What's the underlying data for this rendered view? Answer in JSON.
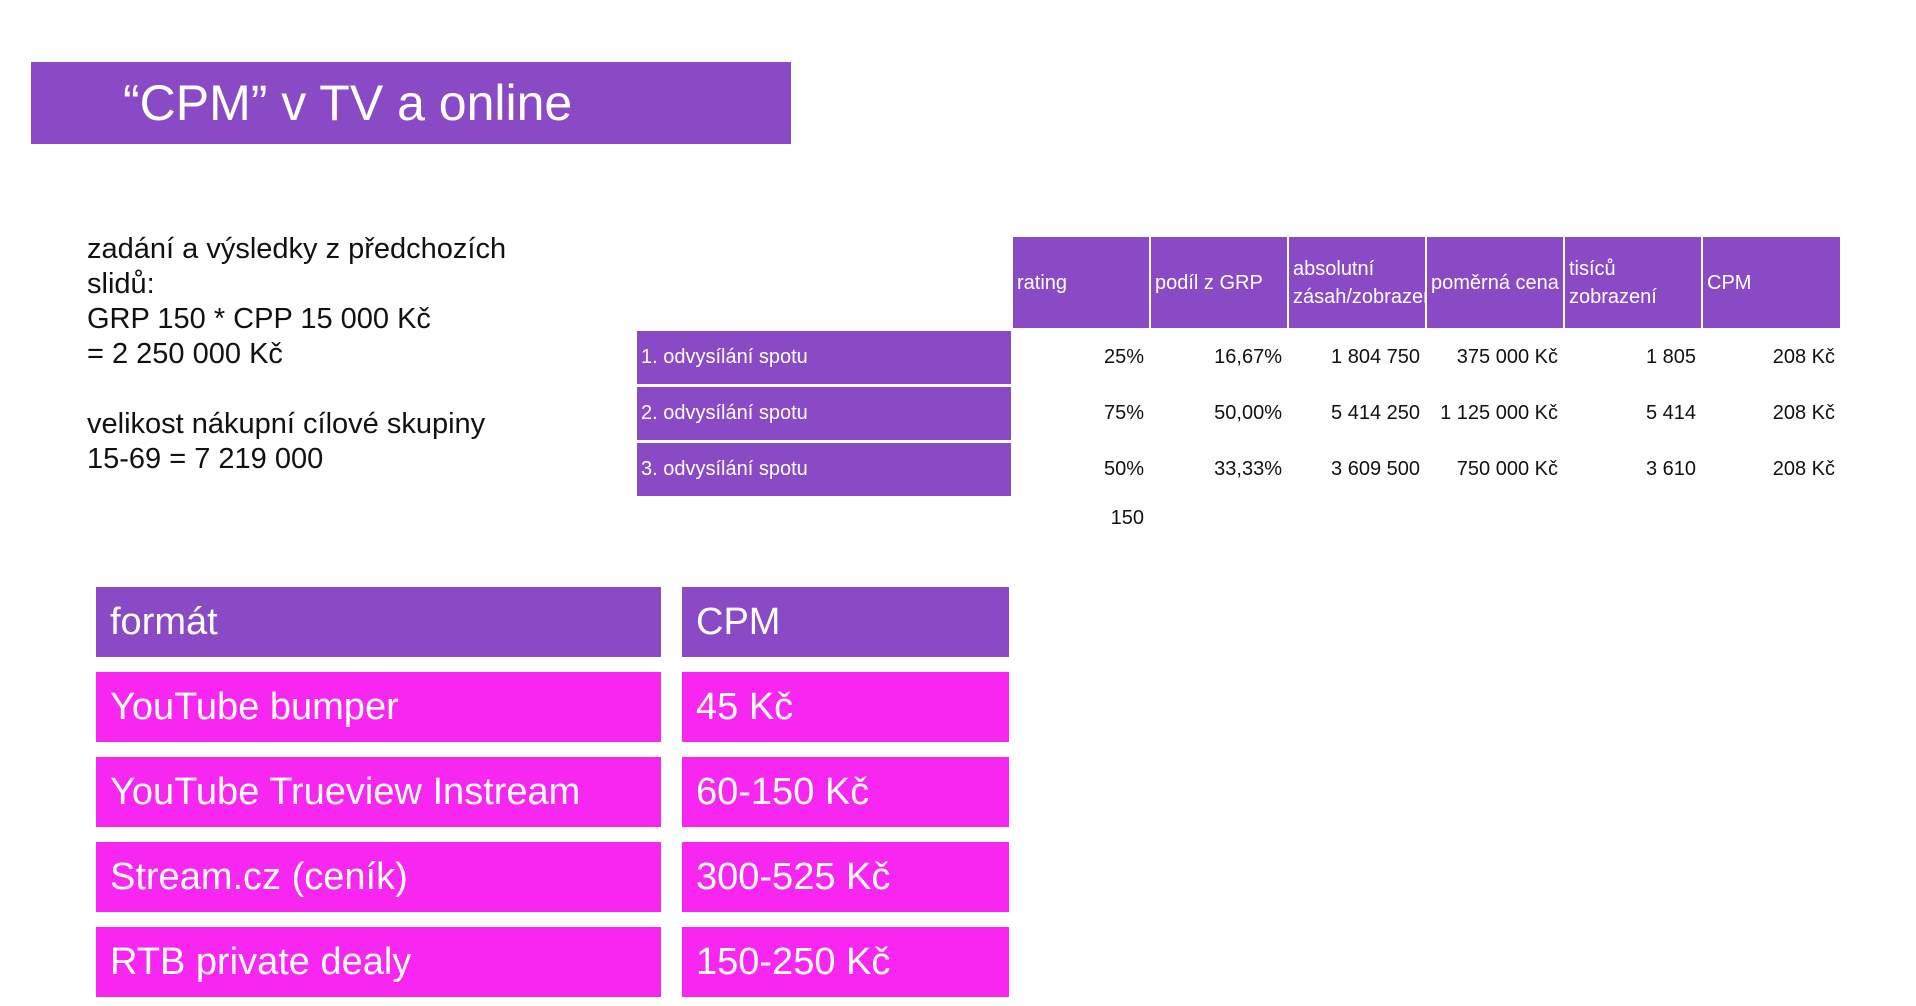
{
  "title": "“CPM” v TV a online",
  "intro": {
    "lines": [
      "zadání a výsledky z předchozích",
      "slidů:",
      "GRP 150 * CPP 15 000 Kč",
      "= 2 250 000 Kč"
    ],
    "lines2": [
      "velikost nákupní cílové skupiny",
      "15-69 = 7 219 000"
    ]
  },
  "tv_table": {
    "headers": [
      "rating",
      "podíl z GRP",
      "absolutní zásah/zobrazení",
      "poměrná cena",
      "tisíců zobrazení",
      "CPM"
    ],
    "rows": [
      {
        "label": "1. odvysílání spotu",
        "values": [
          "25%",
          "16,67%",
          "1 804 750",
          "375 000 Kč",
          "1 805",
          "208 Kč"
        ]
      },
      {
        "label": "2. odvysílání spotu",
        "values": [
          "75%",
          "50,00%",
          "5 414 250",
          "1 125 000 Kč",
          "5 414",
          "208 Kč"
        ]
      },
      {
        "label": "3. odvysílání spotu",
        "values": [
          "50%",
          "33,33%",
          "3 609 500",
          "750 000 Kč",
          "3 610",
          "208 Kč"
        ]
      }
    ],
    "total_rating": "150"
  },
  "format_table": {
    "headers": [
      "formát",
      "CPM"
    ],
    "rows": [
      {
        "format": "YouTube bumper",
        "cpm": "45 Kč"
      },
      {
        "format": "YouTube Trueview Instream",
        "cpm": "60-150 Kč"
      },
      {
        "format": "Stream.cz (ceník)",
        "cpm": "300-525 Kč"
      },
      {
        "format": "RTB private dealy",
        "cpm": "150-250 Kč"
      }
    ]
  },
  "colors": {
    "purple": "#8a4ac6",
    "magenta": "#f826f1"
  }
}
